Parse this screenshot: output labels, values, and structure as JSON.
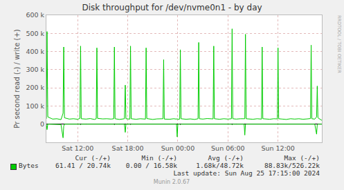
{
  "chart_data": {
    "type": "line",
    "title": "Disk throughput for /dev/nvme0n1 - by day",
    "y_label": "Pr second read (-) / write (+)",
    "x": [
      8.25,
      8.33,
      8.42,
      9.0,
      9.5,
      10.0,
      10.25,
      10.33,
      10.42,
      11.0,
      11.5,
      12.0,
      12.27,
      12.35,
      12.43,
      13.0,
      13.5,
      14.0,
      14.22,
      14.3,
      14.38,
      15.0,
      15.5,
      16.0,
      16.32,
      16.4,
      16.48,
      17.0,
      17.6,
      17.7,
      17.78,
      18.25,
      18.33,
      18.41,
      19.0,
      19.5,
      20.12,
      20.2,
      20.28,
      21.0,
      21.5,
      22.22,
      22.3,
      22.38,
      23.0,
      23.5,
      23.84,
      23.92,
      24.0,
      24.22,
      24.3,
      24.38,
      25.0,
      25.5,
      26.0,
      26.42,
      26.5,
      26.58,
      27.0,
      27.5,
      28.22,
      28.3,
      28.38,
      29.0,
      29.5,
      30.0,
      30.42,
      30.5,
      30.58,
      31.0,
      31.5,
      31.94,
      32.02,
      32.1,
      32.18,
      33.0,
      33.5,
      34.02,
      34.1,
      34.18,
      35.0,
      35.5,
      35.92,
      36.0,
      36.08,
      36.5,
      37.0,
      37.5,
      38.0,
      38.5,
      39.0,
      39.5,
      39.89,
      39.97,
      40.05,
      40.4,
      40.62,
      40.7,
      40.78,
      41.25
    ],
    "series": [
      {
        "name": "Bytes",
        "color": "#00cc00",
        "values": [
          30000,
          510000,
          40000,
          28000,
          30000,
          25000,
          60000,
          425000,
          35000,
          28000,
          30000,
          27000,
          32000,
          430000,
          30000,
          28000,
          31000,
          26000,
          30000,
          420000,
          32000,
          29000,
          30000,
          28000,
          30000,
          425000,
          30000,
          26000,
          30000,
          215000,
          30000,
          28000,
          430000,
          30000,
          27000,
          30000,
          28000,
          420000,
          31000,
          26000,
          29000,
          30000,
          355000,
          28000,
          27000,
          30000,
          28000,
          30000,
          27000,
          28000,
          410000,
          30000,
          27000,
          29000,
          26000,
          30000,
          450000,
          30000,
          28000,
          31000,
          29000,
          430000,
          30000,
          27000,
          30000,
          28000,
          30000,
          525000,
          30000,
          28000,
          30000,
          29000,
          30000,
          495000,
          30000,
          27000,
          30000,
          28000,
          425000,
          30000,
          27000,
          30000,
          29000,
          420000,
          30000,
          28000,
          26000,
          30000,
          28000,
          30000,
          27000,
          29000,
          31000,
          435000,
          30000,
          28000,
          40000,
          210000,
          35000,
          20740
        ],
        "read_values": [
          0,
          -30000,
          0,
          0,
          0,
          -2000,
          -75000,
          -10000,
          0,
          0,
          0,
          0,
          0,
          -3000,
          0,
          0,
          0,
          0,
          0,
          -2000,
          0,
          0,
          0,
          0,
          0,
          -3000,
          0,
          0,
          0,
          -45000,
          0,
          0,
          -2000,
          0,
          0,
          0,
          0,
          -2000,
          0,
          0,
          0,
          0,
          -2000,
          0,
          0,
          0,
          0,
          -70000,
          0,
          0,
          -3000,
          0,
          0,
          0,
          0,
          0,
          -2000,
          0,
          0,
          0,
          0,
          -2000,
          0,
          0,
          0,
          0,
          0,
          -3000,
          0,
          0,
          0,
          0,
          -60000,
          -2000,
          0,
          0,
          0,
          0,
          -2000,
          0,
          0,
          0,
          0,
          -2000,
          0,
          0,
          0,
          0,
          0,
          0,
          0,
          0,
          0,
          -2000,
          0,
          0,
          -55000,
          -3000,
          0,
          -61
        ]
      }
    ],
    "xlim": [
      8.25,
      41.25
    ],
    "xticks": [
      {
        "value": 12,
        "label": "Sat 12:00"
      },
      {
        "value": 18,
        "label": "Sat 18:00"
      },
      {
        "value": 24,
        "label": "Sun 00:00"
      },
      {
        "value": 30,
        "label": "Sun 06:00"
      },
      {
        "value": 36,
        "label": "Sun 12:00"
      }
    ],
    "ylim": [
      -100000,
      600000
    ],
    "yticks": [
      0,
      {
        "value": 100000,
        "label": "100 k"
      },
      {
        "value": 200000,
        "label": "200 k"
      },
      {
        "value": 300000,
        "label": "300 k"
      },
      {
        "value": 400000,
        "label": "400 k"
      },
      {
        "value": 500000,
        "label": "500 k"
      },
      {
        "value": 600000,
        "label": "600 k"
      }
    ],
    "grid": true,
    "stats": {
      "headers": [
        "Cur (-/+)",
        "Min (-/+)",
        "Avg (-/+)",
        "Max (-/+)"
      ],
      "row": [
        "61.41 / 20.74k",
        "0.00 / 16.58k",
        "1.68k/48.72k",
        "88.83k/526.22k"
      ]
    },
    "footer": [
      "Last update: Sun Aug 25 17:15:00 2024",
      "Munin 2.0.67"
    ],
    "watermark": "RRDTOOL / TOBI OETIKER"
  }
}
